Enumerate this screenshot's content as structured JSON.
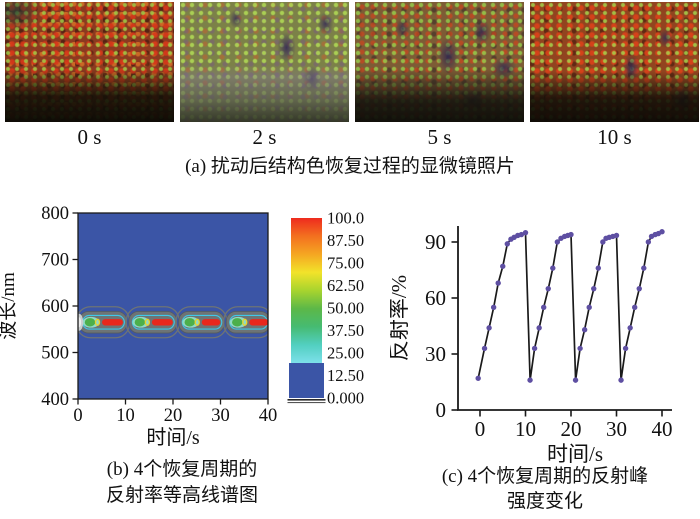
{
  "panel_a": {
    "photos": [
      {
        "label": "0 s"
      },
      {
        "label": "2 s"
      },
      {
        "label": "5 s"
      },
      {
        "label": "10 s"
      }
    ],
    "caption": "(a) 扰动后结构色恢复过程的显微镜照片"
  },
  "panel_b": {
    "caption": [
      "(b) 4个恢复周期的",
      "反射率等高线谱图"
    ]
  },
  "panel_c": {
    "caption": [
      "(c) 4个恢复周期的反射峰",
      "强度变化"
    ]
  },
  "chart_data": [
    {
      "type": "heatmap",
      "subtype": "filled-contour",
      "xlabel": "时间/s",
      "ylabel": "波长/nm",
      "xlim": [
        0,
        40
      ],
      "ylim": [
        400,
        800
      ],
      "xticks": [
        0,
        10,
        20,
        30,
        40
      ],
      "yticks": [
        400,
        500,
        600,
        700,
        800
      ],
      "colorbar_tick_labels": [
        "100.0",
        "87.50",
        "75.00",
        "62.50",
        "50.00",
        "37.50",
        "25.00",
        "12.50",
        "0.000"
      ],
      "colorbar_range": [
        0,
        100
      ],
      "band_center_nm": 565,
      "band_halfwidth_nm": 28,
      "cycles_s": [
        [
          0,
          10.5
        ],
        [
          10.5,
          21
        ],
        [
          21,
          31
        ],
        [
          31,
          41
        ]
      ],
      "peak_reflectance_pct": 100,
      "background_reflectance_pct": 0,
      "colors": {
        "background": "#3b55a6",
        "band_gray": "#6e7475",
        "band_gray_edge": "#565c5d",
        "contour_cyan": "#3fc8e8",
        "teal": "#90d9c5",
        "green": "#4caf4b",
        "yellow": "#e9d32b",
        "peak_red": "#e8271c",
        "scale": [
          "#ee2b1e",
          "#f3701f",
          "#f5a622",
          "#f2e32a",
          "#a8d42e",
          "#5cb848",
          "#46bb72",
          "#52cfc0",
          "#7de0ea"
        ]
      }
    },
    {
      "type": "line",
      "xlabel": "时间/s",
      "ylabel": "反射率/%",
      "xlim": [
        -2,
        41
      ],
      "ylim": [
        0,
        100
      ],
      "xticks": [
        0,
        10,
        20,
        30,
        40
      ],
      "yticks": [
        0,
        30,
        60,
        90
      ],
      "colors": {
        "line": "#1a1a1a",
        "marker": "#5e4fa2"
      },
      "points": [
        [
          -0.4,
          17
        ],
        [
          1,
          33
        ],
        [
          2,
          44
        ],
        [
          3,
          55
        ],
        [
          4,
          68
        ],
        [
          5,
          77
        ],
        [
          6,
          89
        ],
        [
          6.8,
          91.5
        ],
        [
          7.5,
          92.5
        ],
        [
          8.3,
          93.5
        ],
        [
          9.1,
          94
        ],
        [
          10,
          95
        ],
        [
          11,
          16
        ],
        [
          12,
          33
        ],
        [
          13,
          44
        ],
        [
          14,
          55
        ],
        [
          15,
          65
        ],
        [
          16,
          76
        ],
        [
          17,
          90
        ],
        [
          17.8,
          92
        ],
        [
          18.6,
          93
        ],
        [
          19.3,
          93.5
        ],
        [
          20,
          94
        ],
        [
          21,
          16
        ],
        [
          22,
          33
        ],
        [
          23,
          43
        ],
        [
          24,
          55
        ],
        [
          25,
          65
        ],
        [
          26,
          76
        ],
        [
          27,
          90
        ],
        [
          27.7,
          92
        ],
        [
          28.4,
          92.5
        ],
        [
          29.2,
          93
        ],
        [
          30,
          93.5
        ],
        [
          31,
          16
        ],
        [
          32,
          33
        ],
        [
          33,
          44
        ],
        [
          34,
          55
        ],
        [
          35,
          65
        ],
        [
          36,
          76
        ],
        [
          37,
          90
        ],
        [
          37.7,
          93
        ],
        [
          38.5,
          94
        ],
        [
          39.2,
          94.5
        ],
        [
          40,
          95.5
        ]
      ]
    }
  ]
}
